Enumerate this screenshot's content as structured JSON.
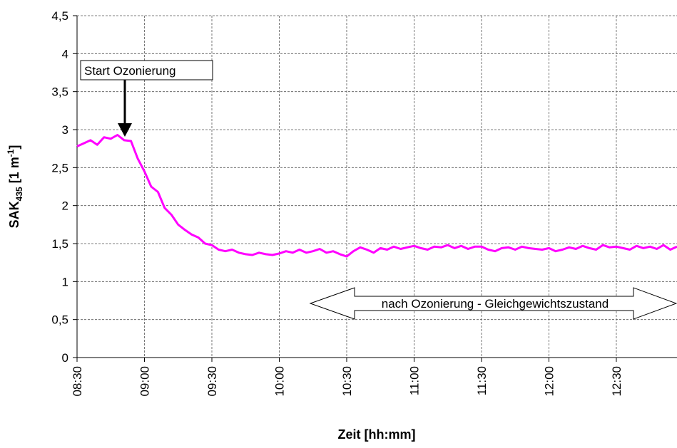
{
  "chart_data": {
    "type": "line",
    "xlabel": "Zeit [hh:mm]",
    "ylabel": {
      "main": "SAK",
      "sub": "435",
      "unit": " [1 m",
      "sup": "-1",
      "close": "]"
    },
    "annotations": [
      "Start Ozonierung",
      "nach Ozonierung - Gleichgewichtszustand"
    ],
    "x": [
      "08:30",
      "08:33",
      "08:36",
      "08:39",
      "08:42",
      "08:45",
      "08:48",
      "08:51",
      "08:54",
      "08:57",
      "09:00",
      "09:03",
      "09:06",
      "09:09",
      "09:12",
      "09:15",
      "09:18",
      "09:21",
      "09:24",
      "09:27",
      "09:30",
      "09:33",
      "09:36",
      "09:39",
      "09:42",
      "09:45",
      "09:48",
      "09:51",
      "09:54",
      "09:57",
      "10:00",
      "10:03",
      "10:06",
      "10:09",
      "10:12",
      "10:15",
      "10:18",
      "10:21",
      "10:24",
      "10:27",
      "10:30",
      "10:33",
      "10:36",
      "10:39",
      "10:42",
      "10:45",
      "10:48",
      "10:51",
      "10:54",
      "10:57",
      "11:00",
      "11:03",
      "11:06",
      "11:09",
      "11:12",
      "11:15",
      "11:18",
      "11:21",
      "11:24",
      "11:27",
      "11:30",
      "11:33",
      "11:36",
      "11:39",
      "11:42",
      "11:45",
      "11:48",
      "11:51",
      "11:54",
      "11:57",
      "12:00",
      "12:03",
      "12:06",
      "12:09",
      "12:12",
      "12:15",
      "12:18",
      "12:21",
      "12:24",
      "12:27",
      "12:30",
      "12:33",
      "12:36",
      "12:39",
      "12:42",
      "12:45",
      "12:48",
      "12:51",
      "12:54",
      "12:57"
    ],
    "series": [
      {
        "name": "SAK435",
        "color": "#ff00ff",
        "values": [
          2.78,
          2.82,
          2.86,
          2.8,
          2.9,
          2.88,
          2.93,
          2.86,
          2.85,
          2.62,
          2.45,
          2.25,
          2.18,
          1.97,
          1.88,
          1.75,
          1.68,
          1.62,
          1.58,
          1.5,
          1.48,
          1.42,
          1.4,
          1.42,
          1.38,
          1.36,
          1.35,
          1.38,
          1.36,
          1.35,
          1.37,
          1.4,
          1.38,
          1.42,
          1.38,
          1.4,
          1.43,
          1.38,
          1.4,
          1.36,
          1.33,
          1.4,
          1.45,
          1.42,
          1.38,
          1.44,
          1.42,
          1.46,
          1.43,
          1.45,
          1.47,
          1.44,
          1.42,
          1.46,
          1.45,
          1.48,
          1.44,
          1.47,
          1.43,
          1.46,
          1.46,
          1.42,
          1.4,
          1.44,
          1.45,
          1.42,
          1.46,
          1.44,
          1.43,
          1.42,
          1.44,
          1.4,
          1.42,
          1.45,
          1.43,
          1.47,
          1.44,
          1.42,
          1.48,
          1.45,
          1.46,
          1.44,
          1.42,
          1.47,
          1.44,
          1.46,
          1.43,
          1.48,
          1.42,
          1.46
        ]
      }
    ],
    "xlim": [
      "08:30",
      "12:57"
    ],
    "xticks": [
      "08:30",
      "09:00",
      "09:30",
      "10:00",
      "10:30",
      "11:00",
      "11:30",
      "12:00",
      "12:30"
    ],
    "ylim": [
      0,
      4.5
    ],
    "yticks": [
      0,
      {
        "value": 0.5,
        "label": "0,5"
      },
      1,
      {
        "value": 1.5,
        "label": "1,5"
      },
      2,
      {
        "value": 2.5,
        "label": "2,5"
      },
      3,
      {
        "value": 3.5,
        "label": "3,5"
      },
      4,
      {
        "value": 4.5,
        "label": "4,5"
      }
    ],
    "grid": true
  }
}
